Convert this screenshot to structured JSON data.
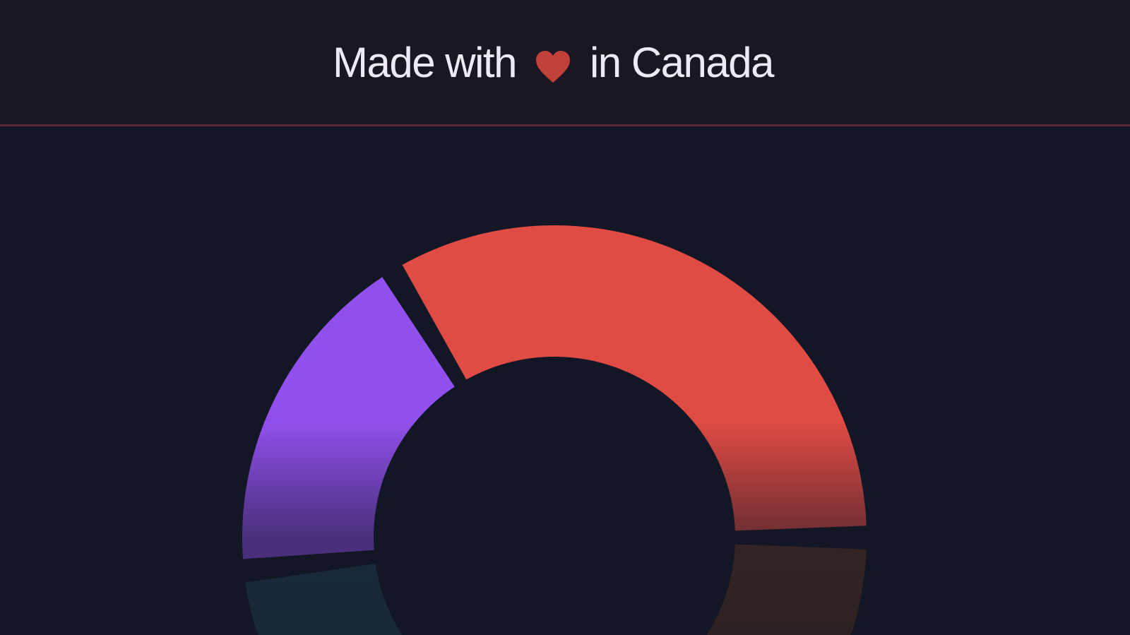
{
  "footer": {
    "text_before": "Made with",
    "icon": "heart-icon",
    "text_after": "in Canada",
    "heart_color": "#c0403a"
  },
  "chart_data": {
    "type": "pie",
    "variant": "donut",
    "title": "",
    "visible": "partially cropped at bottom",
    "segments": [
      {
        "color": "#e04b44",
        "start_fraction": 0.913,
        "end_fraction": 1.25
      },
      {
        "color": "#5c3520",
        "start_fraction": 0.25,
        "end_fraction": 0.45
      },
      {
        "color": "#1e4556",
        "start_fraction": 0.55,
        "end_fraction": 0.733
      },
      {
        "color": "#9150ec",
        "start_fraction": 0.733,
        "end_fraction": 0.913
      }
    ]
  }
}
